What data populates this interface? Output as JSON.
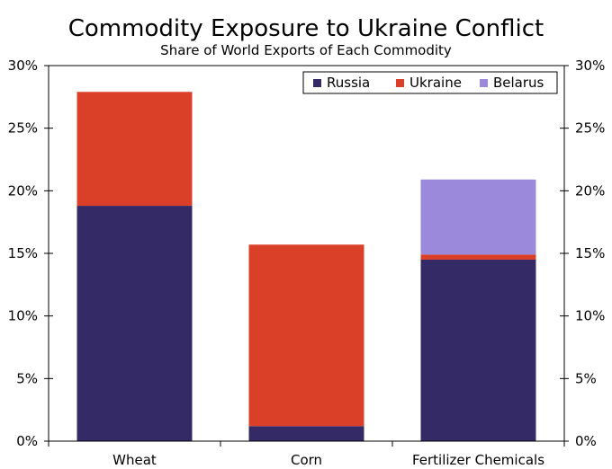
{
  "chart_data": {
    "type": "bar",
    "stacked": true,
    "title": "Commodity Exposure to Ukraine Conflict",
    "subtitle": "Share of World Exports of Each Commodity",
    "categories": [
      "Wheat",
      "Corn",
      "Fertilizer Chemicals"
    ],
    "series": [
      {
        "name": "Russia",
        "color": "#332a66",
        "values": [
          18.8,
          1.2,
          14.5
        ]
      },
      {
        "name": "Ukraine",
        "color": "#d94027",
        "values": [
          9.1,
          14.5,
          0.4
        ]
      },
      {
        "name": "Belarus",
        "color": "#9b8adb",
        "values": [
          0,
          0,
          6.0
        ]
      }
    ],
    "ylim": [
      0,
      30
    ],
    "yticks": [
      "0%",
      "5%",
      "10%",
      "15%",
      "20%",
      "25%",
      "30%"
    ],
    "ytick_values": [
      0,
      5,
      10,
      15,
      20,
      25,
      30
    ],
    "grid": false,
    "legend_position": "top-right",
    "dual_y_axis": true
  }
}
